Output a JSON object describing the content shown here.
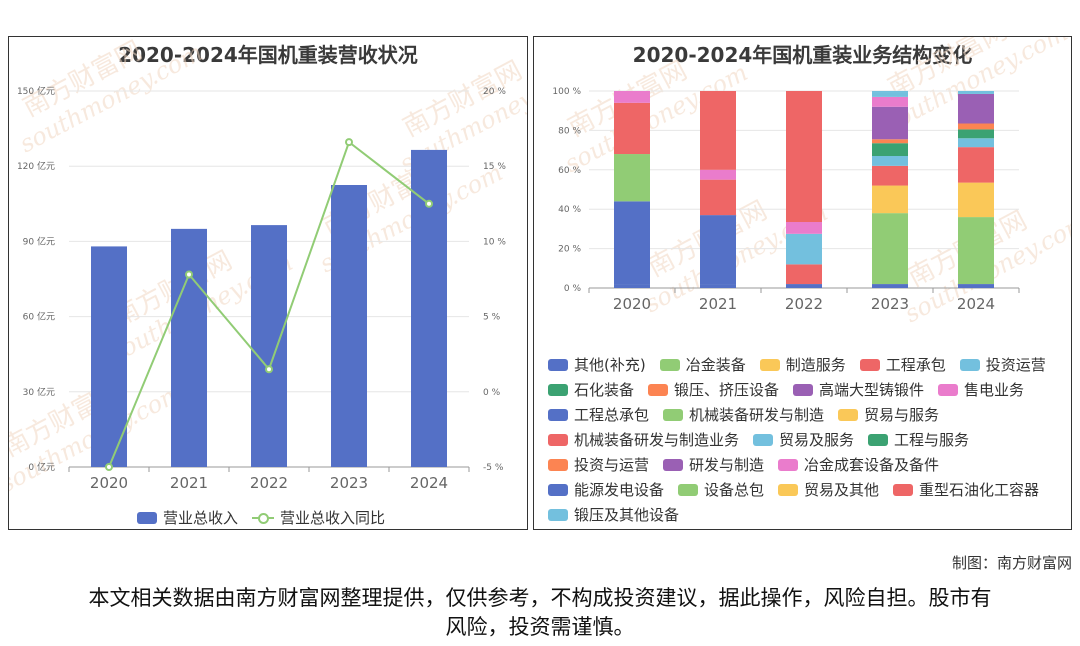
{
  "chart_data": [
    {
      "type": "bar",
      "title": "2020-2024年国机重装营收状况",
      "categories": [
        "2020",
        "2021",
        "2022",
        "2023",
        "2024"
      ],
      "series": [
        {
          "name": "营业总收入",
          "type": "bar",
          "values": [
            88,
            95,
            96.5,
            112.5,
            126.5
          ],
          "color": "#5470c6"
        },
        {
          "name": "营业总收入同比",
          "type": "line",
          "values": [
            -5,
            7.8,
            1.5,
            16.6,
            12.5
          ],
          "color": "#91cc75"
        }
      ],
      "y_left": {
        "min": 0,
        "max": 150,
        "ticks": [
          0,
          30,
          60,
          90,
          120,
          150
        ],
        "tick_labels": [
          "0 亿元",
          "30 亿元",
          "60 亿元",
          "90 亿元",
          "120 亿元",
          "150 亿元"
        ]
      },
      "y_right": {
        "min": -5,
        "max": 20,
        "ticks": [
          -5,
          0,
          5,
          10,
          15,
          20
        ],
        "tick_labels": [
          "-5 %",
          "0 %",
          "5 %",
          "10 %",
          "15 %",
          "20 %"
        ]
      },
      "legend": "bottom",
      "grid": true
    },
    {
      "type": "bar",
      "stacked": true,
      "title": "2020-2024年国机重装业务结构变化",
      "categories": [
        "2020",
        "2021",
        "2022",
        "2023",
        "2024"
      ],
      "y": {
        "min": 0,
        "max": 100,
        "ticks": [
          0,
          20,
          40,
          60,
          80,
          100
        ],
        "tick_labels": [
          "0 %",
          "20 %",
          "40 %",
          "60 %",
          "80 %",
          "100 %"
        ]
      },
      "series": [
        {
          "name": "其他(补充)",
          "color": "#5470c6",
          "values": [
            2,
            2,
            2,
            2,
            2
          ]
        },
        {
          "name": "冶金装备",
          "color": "#91cc75",
          "values": [
            0,
            0,
            0,
            36,
            34
          ]
        },
        {
          "name": "制造服务",
          "color": "#fac858",
          "values": [
            0,
            0,
            0,
            14,
            17.5
          ]
        },
        {
          "name": "工程承包",
          "color": "#ee6666",
          "values": [
            0,
            0,
            0,
            10,
            18
          ]
        },
        {
          "name": "投资运营",
          "color": "#73c0de",
          "values": [
            0,
            0,
            0,
            5,
            4.5
          ]
        },
        {
          "name": "石化装备",
          "color": "#3ba272",
          "values": [
            0,
            0,
            0,
            6.5,
            4.5
          ]
        },
        {
          "name": "锻压、挤压设备",
          "color": "#fc8452",
          "values": [
            0,
            0,
            0,
            2,
            3
          ]
        },
        {
          "name": "高端大型铸锻件",
          "color": "#9a60b4",
          "values": [
            0,
            0,
            0,
            16.5,
            15
          ]
        },
        {
          "name": "售电业务",
          "color": "#ea7ccc",
          "values": [
            0,
            0,
            0,
            5,
            0
          ]
        },
        {
          "name": "工程总承包",
          "color": "#5470c6",
          "values": [
            42,
            35,
            0,
            0,
            0
          ]
        },
        {
          "name": "机械装备研发与制造",
          "color": "#91cc75",
          "values": [
            24,
            0,
            0,
            0,
            0
          ]
        },
        {
          "name": "贸易与服务",
          "color": "#fac858",
          "values": [
            0,
            0,
            0,
            0,
            0
          ]
        },
        {
          "name": "机械装备研发与制造业务",
          "color": "#ee6666",
          "values": [
            26,
            18,
            10,
            0,
            0
          ]
        },
        {
          "name": "贸易及服务",
          "color": "#73c0de",
          "values": [
            0,
            0,
            15.5,
            2,
            0
          ]
        },
        {
          "name": "工程与服务",
          "color": "#3ba272",
          "values": [
            0,
            0,
            0,
            0,
            0
          ]
        },
        {
          "name": "投资与运营",
          "color": "#fc8452",
          "values": [
            0,
            0,
            0,
            0,
            0
          ]
        },
        {
          "name": "研发与制造",
          "color": "#9a60b4",
          "values": [
            0,
            0,
            0,
            0,
            0
          ]
        },
        {
          "name": "冶金成套设备及备件",
          "color": "#ea7ccc",
          "values": [
            6,
            5,
            6,
            0,
            0
          ]
        },
        {
          "name": "能源发电设备",
          "color": "#5470c6",
          "values": [
            0,
            0,
            0,
            0,
            0
          ]
        },
        {
          "name": "设备总包",
          "color": "#91cc75",
          "values": [
            0,
            0,
            0,
            0,
            0
          ]
        },
        {
          "name": "贸易及其他",
          "color": "#fac858",
          "values": [
            0,
            0,
            0,
            0,
            0
          ]
        },
        {
          "name": "重型石油化工容器",
          "color": "#ee6666",
          "values": [
            0,
            40,
            66.5,
            0,
            0
          ]
        },
        {
          "name": "锻压及其他设备",
          "color": "#73c0de",
          "values": [
            0,
            0,
            0,
            1,
            1.5
          ]
        }
      ],
      "legend": "bottom",
      "grid": true
    }
  ],
  "watermark": {
    "text_cn": "南方财富网",
    "text_en": "southmoney.com"
  },
  "credit": "制图：南方财富网",
  "disclaimer": "本文相关数据由南方财富网整理提供，仅供参考，不构成投资建议，据此操作，风险自担。股市有风险，投资需谨慎。"
}
